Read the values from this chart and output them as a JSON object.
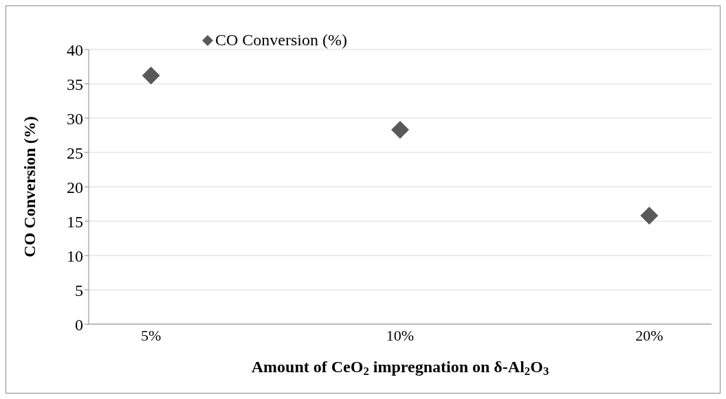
{
  "chart_data": {
    "type": "scatter",
    "categories": [
      "5%",
      "10%",
      "20%"
    ],
    "series": [
      {
        "name": "CO Conversion (%)",
        "color": "#595959",
        "values": [
          36.2,
          28.3,
          15.8
        ]
      }
    ],
    "ylabel": "CO Conversion (%)",
    "xlabel": "Amount of CeO$_{2}$ impregnation on δ-Al$_{2}$O$_{3}$",
    "ylim": [
      0,
      40
    ],
    "yticks": [
      0,
      5,
      10,
      15,
      20,
      25,
      30,
      35,
      40
    ],
    "grid": "y",
    "legend": "top",
    "marker": "diamond"
  }
}
